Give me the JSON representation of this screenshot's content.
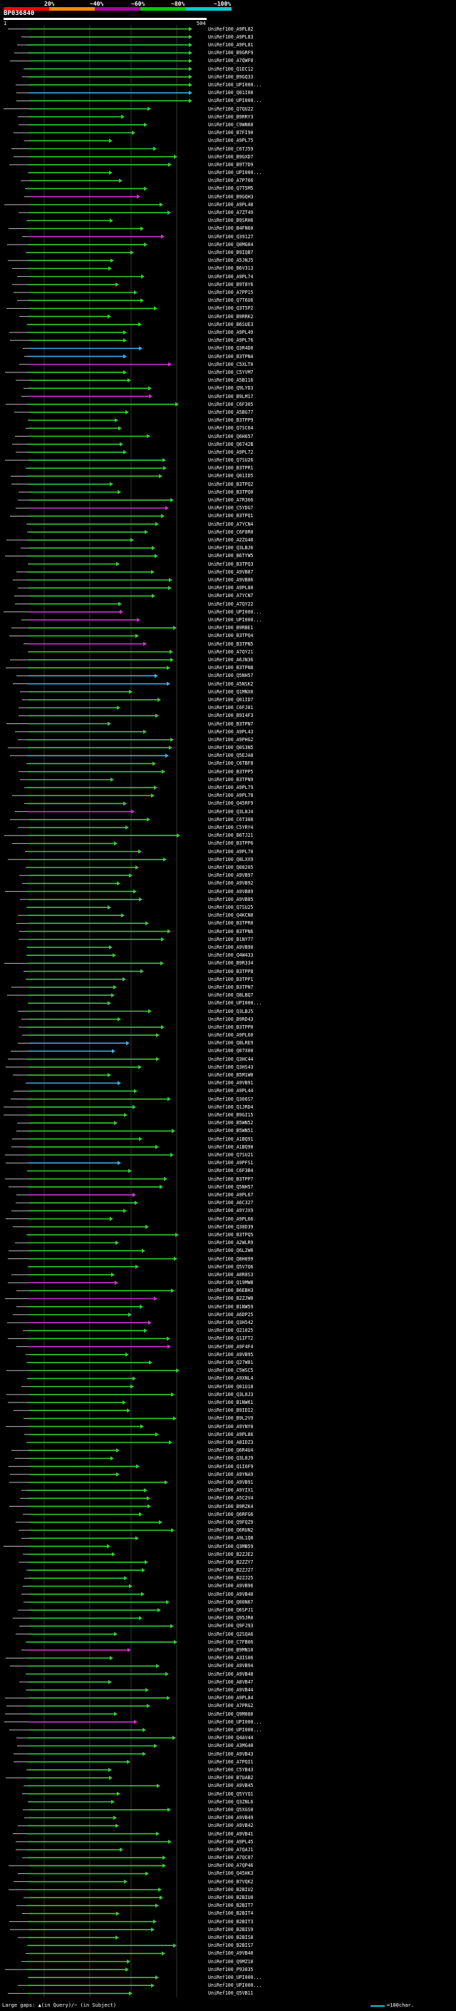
{
  "legend": {
    "labels": [
      "20%",
      "~40%",
      "~60%",
      "~80%",
      "~100%"
    ],
    "colors": [
      "#ff0000",
      "#ff8800",
      "#aa00aa",
      "#00cc00",
      "#00cccc"
    ]
  },
  "query": {
    "id": "BP036840",
    "start": "1",
    "end": "504"
  },
  "footer": {
    "gaps_text": "Large gaps: ▲(in Query)/~ (in Subject)",
    "scale_text": "=100char."
  },
  "colors": {
    "green": "#33cc33",
    "magenta": "#cc33cc",
    "cyan": "#44aadd",
    "line": "#bbbbbb",
    "grid": "#333333"
  },
  "hits": [
    "UniRef100_A9PL82",
    "UniRef100_A9PL83",
    "UniRef100_A9PL81",
    "UniRef100_B9GRF9",
    "UniRef100_A7QWF0",
    "UniRef100_Q1EC12",
    "UniRef100_B9GQ33",
    "UniRef100_UPI000...",
    "UniRef100_Q01I08",
    "UniRef100_UPI000...",
    "UniRef100_Q7QU22",
    "UniRef100_B9RRY3",
    "UniRef100_C9WN60",
    "UniRef100_B7FI90",
    "UniRef100_A9PL75",
    "UniRef100_C6TJ59",
    "UniRef100_B9GXD7",
    "UniRef100_B9T7D9",
    "UniRef100_UPI000...",
    "UniRef100_A7P766",
    "UniRef100_Q7T5M5",
    "UniRef100_B9GQH3",
    "UniRef100_A9PL48",
    "UniRef100_A7ZT49",
    "UniRef100_B9SRH6",
    "UniRef100_B4FN60",
    "UniRef100_Q39127",
    "UniRef100_Q0MG04",
    "UniRef100_B9IQB7",
    "UniRef100_A5JNJ5",
    "UniRef100_B6V313",
    "UniRef100_A9PL74",
    "UniRef100_B9T8Y6",
    "UniRef100_A7PP15",
    "UniRef100_Q7T6U6",
    "UniRef100_Q3T5P2",
    "UniRef100_B9RRK2",
    "UniRef100_B6SUE3",
    "UniRef100_A9PL49",
    "UniRef100_A9PL76",
    "UniRef100_Q3R4D0",
    "UniRef100_B3TPN4",
    "UniRef100_C5XLT0",
    "UniRef100_C5YVM7",
    "UniRef100_A5B116",
    "UniRef100_Q9LYD3",
    "UniRef100_B9LM17",
    "UniRef100_C6F305",
    "UniRef100_A5BG77",
    "UniRef100_B3TPP9",
    "UniRef100_Q7SC64",
    "UniRef100_Q6H657",
    "UniRef100_Q6742B",
    "UniRef100_A9PL72",
    "UniRef100_Q7SU26",
    "UniRef100_B3TPR1",
    "UniRef100_Q01ID5",
    "UniRef100_B3TPQ2",
    "UniRef100_B3TPQ0",
    "UniRef100_A7R366",
    "UniRef100_C5YDG7",
    "UniRef100_B3TPQ1",
    "UniRef100_A7YCN4",
    "UniRef100_C6F8R0",
    "UniRef100_A2ZG48",
    "UniRef100_Q3LBJ6",
    "UniRef100_B6TYW5",
    "UniRef100_B3TPQ3",
    "UniRef100_A9VB87",
    "UniRef100_A9VB86",
    "UniRef100_A9PL80",
    "UniRef100_A7YCN7",
    "UniRef100_A7QY22",
    "UniRef100_UPI000...",
    "UniRef100_UPI000...",
    "UniRef100_B9RBE1",
    "UniRef100_B3TPQ4",
    "UniRef100_B3TPN5",
    "UniRef100_A7QY21",
    "UniRef100_A6JN36",
    "UniRef100_B3TPN8",
    "UniRef100_Q5NH57",
    "UniRef100_A5NSK2",
    "UniRef100_Q1MNX0",
    "UniRef100_Q01ID7",
    "UniRef100_C6FJ81",
    "UniRef100_B9I4F3",
    "UniRef100_B3TPN7",
    "UniRef100_A9PL43",
    "UniRef100_A9PHG2",
    "UniRef100_Q0S3N5",
    "UniRef100_Q5EJA8",
    "UniRef100_C6TBF8",
    "UniRef100_B3TPP5",
    "UniRef100_B3TPN9",
    "UniRef100_A9PL79",
    "UniRef100_A9PL78",
    "UniRef100_Q45RF9",
    "UniRef100_Q3L8J4",
    "UniRef100_C6T308",
    "UniRef100_C5YRY4",
    "UniRef100_B6TJ21",
    "UniRef100_B3TPP6",
    "UniRef100_A9PL70",
    "UniRef100_Q8LXX9",
    "UniRef100_Q00205",
    "UniRef100_A9VB97",
    "UniRef100_A9VB92",
    "UniRef100_A9VB89",
    "UniRef100_A9VB85",
    "UniRef100_Q7SU25",
    "UniRef100_Q4KCN0",
    "UniRef100_B3TPR0",
    "UniRef100_B3TPN6",
    "UniRef100_B1NY77",
    "UniRef100_A9VB90",
    "UniRef100_Q4W433",
    "UniRef100_B9R334",
    "UniRef100_B3TPP8",
    "UniRef100_B3TPP1",
    "UniRef100_B3TPN7",
    "UniRef100_Q8LBQ7",
    "UniRef100_UPI000...",
    "UniRef100_Q3LBJ5",
    "UniRef100_B9RD43",
    "UniRef100_B3TPP0",
    "UniRef100_A9PL60",
    "UniRef100_Q8LRE9",
    "UniRef100_Q07X00",
    "UniRef100_Q3HC44",
    "UniRef100_Q3HS43",
    "UniRef100_B5M1W0",
    "UniRef100_A9VB91",
    "UniRef100_A9PL44",
    "UniRef100_Q306S7",
    "UniRef100_Q1JRD4",
    "UniRef100_B9GI15",
    "UniRef100_B5WN52",
    "UniRef100_B5WN51",
    "UniRef100_A1BQ91",
    "UniRef100_A1BQ90",
    "UniRef100_Q7SU21",
    "UniRef100_A9PFS1",
    "UniRef100_C6F3B4",
    "UniRef100_B3TPP7",
    "UniRef100_Q5NH57",
    "UniRef100_A9PL67",
    "UniRef100_A6C327",
    "UniRef100_A9YJX9",
    "UniRef100_A9PL66",
    "UniRef100_Q38D39",
    "UniRef100_B3TPQ5",
    "UniRef100_A2WLR9",
    "UniRef100_Q6L2W0",
    "UniRef100_Q8H099",
    "UniRef100_Q5V7Q6",
    "UniRef100_A0R8S3",
    "UniRef100_Q19MW8",
    "UniRef100_B6EBH3",
    "UniRef100_B2ZJW0",
    "UniRef100_B1NW59",
    "UniRef100_A6DP25",
    "UniRef100_Q3H542",
    "UniRef100_Q21025",
    "UniRef100_Q1IFT2",
    "UniRef100_A9F4F4",
    "UniRef100_A9VB95",
    "UniRef100_Q27W81",
    "UniRef100_C5WSC5",
    "UniRef100_A9XNL4",
    "UniRef100_Q01U18",
    "UniRef100_Q3L8J3",
    "UniRef100_B1NW61",
    "UniRef100_B9IDI2",
    "UniRef100_B9L2V9",
    "UniRef100_A9YNY0",
    "UniRef100_A9PL86",
    "UniRef100_A8IDZ3",
    "UniRef100_Q6R4U4",
    "UniRef100_Q3L8J9",
    "UniRef100_Q1I6F9",
    "UniRef100_A9YNA9",
    "UniRef100_A9VB91",
    "UniRef100_A9YIX1",
    "UniRef100_A5C2V4",
    "UniRef100_B9RZK4",
    "UniRef100_Q6RFG6",
    "UniRef100_Q9FQZ9",
    "UniRef100_Q6RUN2",
    "UniRef100_A9L1Q8",
    "UniRef100_Q3MB59",
    "UniRef100_B2ZJE2",
    "UniRef100_B2ZZY7",
    "UniRef100_B2ZJ27",
    "UniRef100_B2ZJ25",
    "UniRef100_A9VB96",
    "UniRef100_A9VB40",
    "UniRef100_Q00N67",
    "UniRef100_Q6SPJ1",
    "UniRef100_Q95JR0",
    "UniRef100_Q9FJ93",
    "UniRef100_Q2SQA6",
    "UniRef100_C7FB06",
    "UniRef100_B9MN10",
    "UniRef100_A3IS06",
    "UniRef100_A9VB94",
    "UniRef100_A9VB48",
    "UniRef100_A8VB47",
    "UniRef100_A9VB44",
    "UniRef100_A9PL84",
    "UniRef100_A7PRG2",
    "UniRef100_Q9M080",
    "UniRef100_UPI000...",
    "UniRef100_UPI000...",
    "UniRef100_Q4AV44",
    "UniRef100_A3MG40",
    "UniRef100_A9VB43",
    "UniRef100_A7PQI1",
    "UniRef100_C5YB43",
    "UniRef100_B7UAB2",
    "UniRef100_A9VB45",
    "UniRef100_Q5YYQ1",
    "UniRef100_Q3ZNL6",
    "UniRef100_Q5XGS0",
    "UniRef100_A9VB49",
    "UniRef100_A9VB42",
    "UniRef100_A9VB41",
    "UniRef100_A9PL45",
    "UniRef100_A7QAJ1",
    "UniRef100_A7QC07",
    "UniRef100_A7QP46",
    "UniRef100_Q45HK3",
    "UniRef100_B7VQK2",
    "UniRef100_B2BIU2",
    "UniRef100_B2BIU0",
    "UniRef100_B2BIT7",
    "UniRef100_B2BIT4",
    "UniRef100_B2BIT3",
    "UniRef100_B2BIS9",
    "UniRef100_B2BIS8",
    "UniRef100_B2BIS7",
    "UniRef100_A9VB40",
    "UniRef100_Q9MZ10",
    "UniRef100_P93835",
    "UniRef100_UPI000...",
    "UniRef100_UPI000...",
    "UniRef100_Q5VB11"
  ]
}
